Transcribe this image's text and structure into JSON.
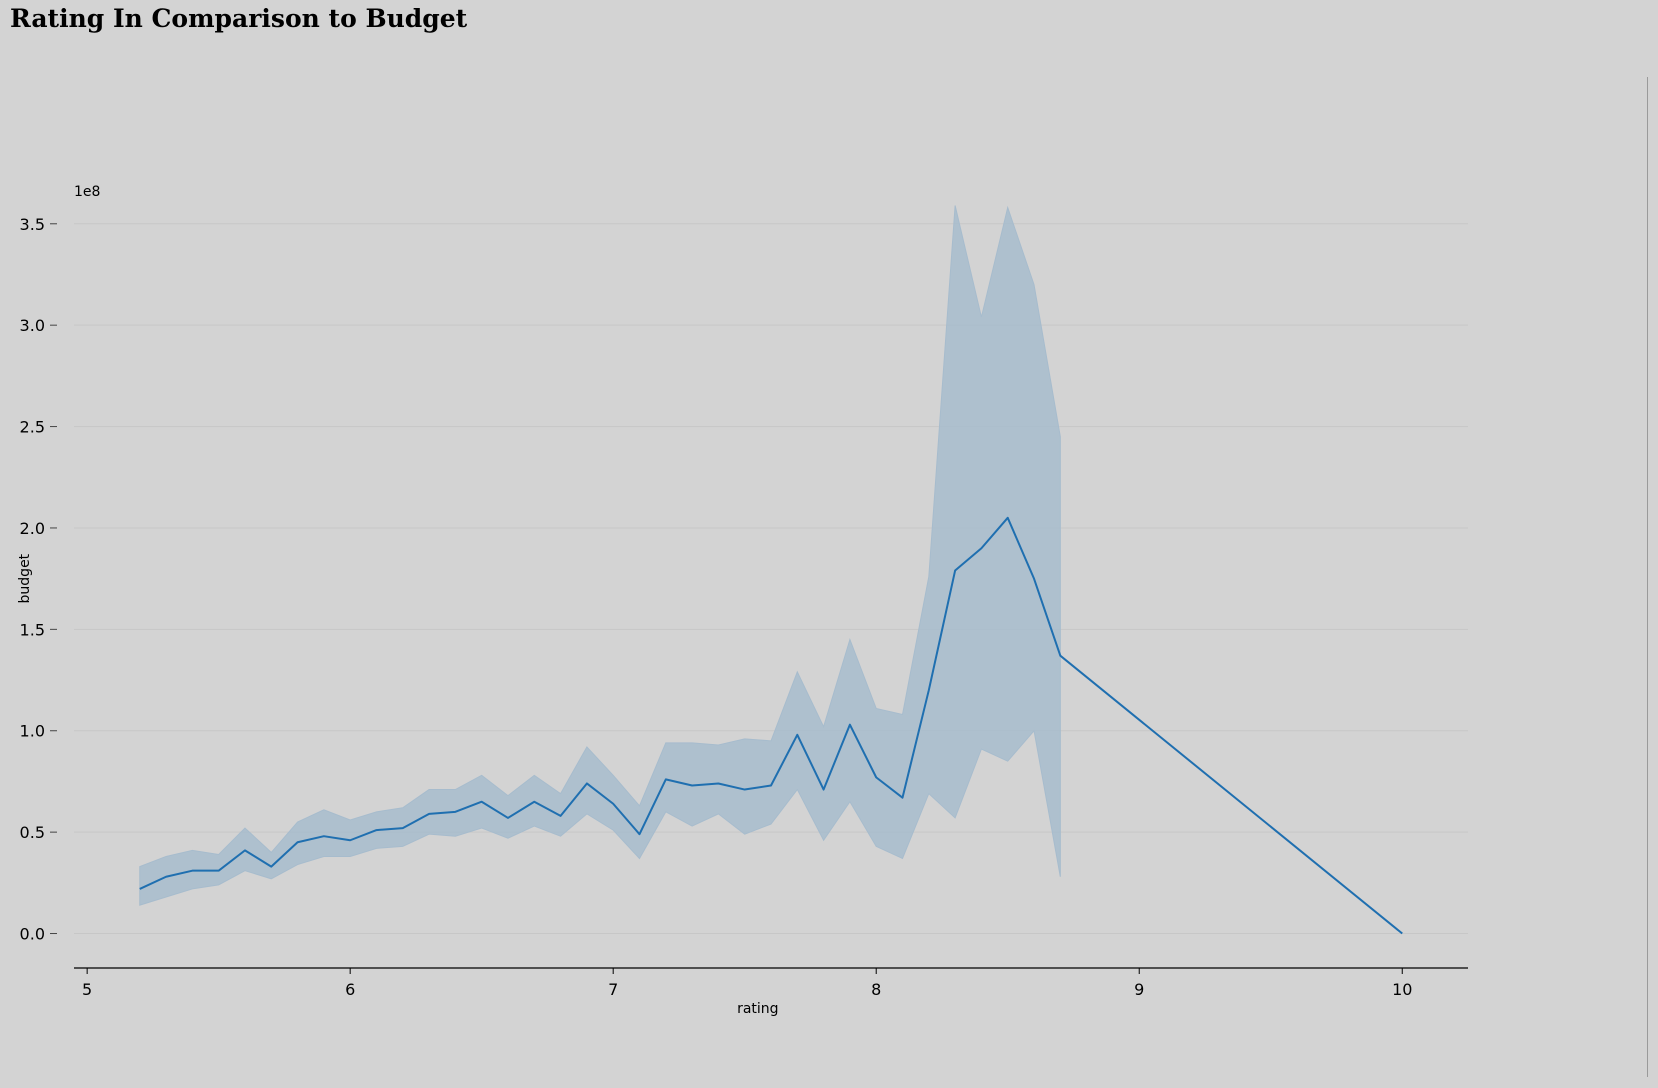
{
  "title": "Rating In Comparison to Budget",
  "colors": {
    "background": "#d3d3d3",
    "line": "#1f6fb0",
    "band": "#a7bccd",
    "grid": "#c7c7c7",
    "axis": "#000000"
  },
  "chart_data": {
    "type": "line",
    "xlabel": "rating",
    "ylabel": "budget",
    "offset_text": "1e8",
    "xlim": [
      4.95,
      10.25
    ],
    "ylim": [
      -0.17,
      3.78
    ],
    "x_ticks": [
      5,
      6,
      7,
      8,
      9,
      10
    ],
    "x_tick_labels": [
      "5",
      "6",
      "7",
      "8",
      "9",
      "10"
    ],
    "y_ticks": [
      0.0,
      0.5,
      1.0,
      1.5,
      2.0,
      2.5,
      3.0,
      3.5
    ],
    "y_tick_labels": [
      "0.0",
      "0.5",
      "1.0",
      "1.5",
      "2.0",
      "2.5",
      "3.0",
      "3.5"
    ],
    "grid": "horizontal",
    "series": [
      {
        "x": [
          5.2,
          5.3,
          5.4,
          5.5,
          5.6,
          5.7,
          5.8,
          5.9,
          6.0,
          6.1,
          6.2,
          6.3,
          6.4,
          6.5,
          6.6,
          6.7,
          6.8,
          6.9,
          7.0,
          7.1,
          7.2,
          7.3,
          7.4,
          7.5,
          7.6,
          7.7,
          7.8,
          7.9,
          8.0,
          8.1,
          8.2,
          8.3,
          8.4,
          8.5,
          8.6,
          8.7,
          10.0
        ],
        "mean": [
          0.22,
          0.28,
          0.31,
          0.31,
          0.41,
          0.33,
          0.45,
          0.48,
          0.46,
          0.51,
          0.52,
          0.59,
          0.6,
          0.65,
          0.57,
          0.65,
          0.58,
          0.74,
          0.64,
          0.49,
          0.76,
          0.73,
          0.74,
          0.71,
          0.73,
          0.98,
          0.71,
          1.03,
          0.77,
          0.67,
          1.2,
          1.79,
          1.9,
          2.05,
          1.75,
          1.37,
          0.0
        ],
        "ci_low": [
          0.14,
          0.18,
          0.22,
          0.24,
          0.31,
          0.27,
          0.34,
          0.38,
          0.38,
          0.42,
          0.43,
          0.49,
          0.48,
          0.52,
          0.47,
          0.53,
          0.48,
          0.59,
          0.51,
          0.37,
          0.6,
          0.53,
          0.59,
          0.49,
          0.54,
          0.71,
          0.46,
          0.65,
          0.43,
          0.37,
          0.69,
          0.57,
          0.91,
          0.85,
          1.0,
          0.28,
          null
        ],
        "ci_high": [
          0.33,
          0.38,
          0.41,
          0.39,
          0.52,
          0.4,
          0.55,
          0.61,
          0.56,
          0.6,
          0.62,
          0.71,
          0.71,
          0.78,
          0.68,
          0.78,
          0.69,
          0.92,
          0.78,
          0.63,
          0.94,
          0.94,
          0.93,
          0.96,
          0.95,
          1.29,
          1.02,
          1.45,
          1.11,
          1.08,
          1.76,
          3.59,
          3.04,
          3.58,
          3.2,
          2.45,
          null
        ]
      }
    ]
  }
}
